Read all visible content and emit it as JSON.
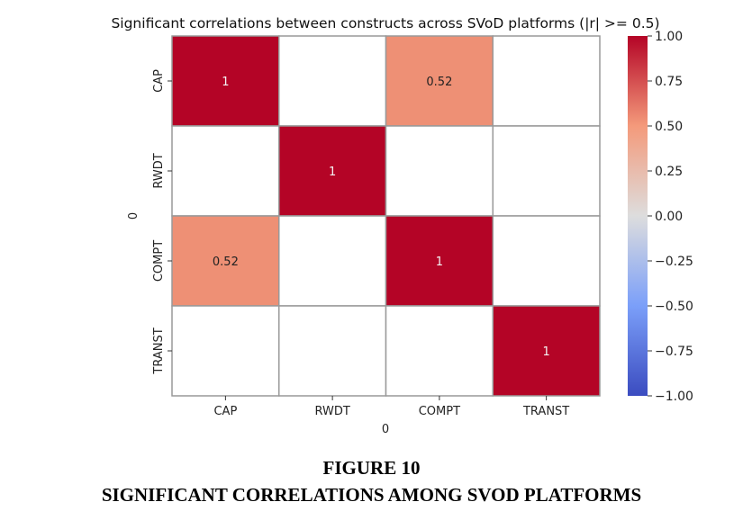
{
  "chart_data": {
    "type": "heatmap",
    "title": "Significant correlations between constructs across SVoD platforms (|r| >= 0.5)",
    "xlabel": "0",
    "ylabel": "0",
    "x_categories": [
      "CAP",
      "RWDT",
      "COMPT",
      "TRANST"
    ],
    "y_categories": [
      "CAP",
      "RWDT",
      "COMPT",
      "TRANST"
    ],
    "values": [
      [
        1,
        null,
        0.52,
        null
      ],
      [
        null,
        1,
        null,
        null
      ],
      [
        0.52,
        null,
        1,
        null
      ],
      [
        null,
        null,
        null,
        1
      ]
    ],
    "annotations": [
      [
        "1",
        "",
        "0.52",
        ""
      ],
      [
        "",
        "1",
        "",
        ""
      ],
      [
        "0.52",
        "",
        "1",
        ""
      ],
      [
        "",
        "",
        "",
        "1"
      ]
    ],
    "colormap": "coolwarm",
    "vmin": -1,
    "vmax": 1,
    "colorbar_ticks": [
      "1.00",
      "0.75",
      "0.50",
      "0.25",
      "0.00",
      "−0.25",
      "−0.50",
      "−0.75",
      "−1.00"
    ],
    "colorbar_tick_values": [
      1,
      0.75,
      0.5,
      0.25,
      0,
      -0.25,
      -0.5,
      -0.75,
      -1
    ]
  },
  "caption": {
    "figure_label": "FIGURE 10",
    "text": "SIGNIFICANT CORRELATIONS AMONG SVOD PLATFORMS"
  }
}
